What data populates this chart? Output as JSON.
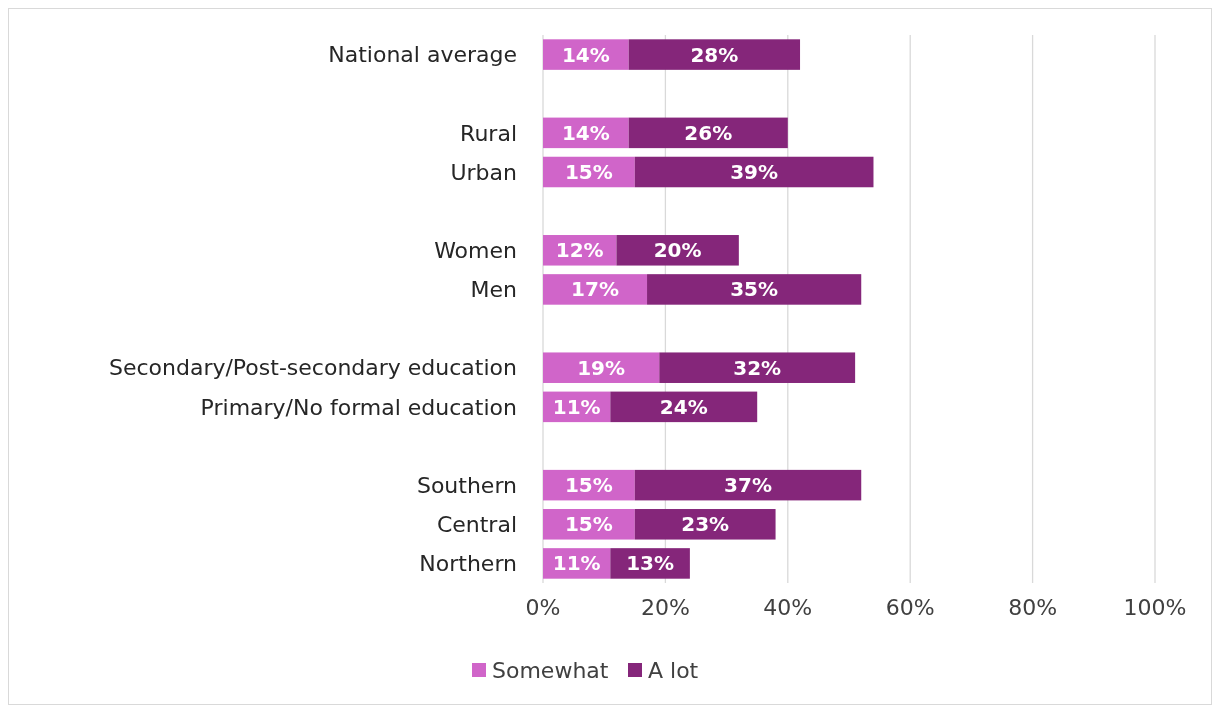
{
  "chart_data": {
    "type": "bar",
    "orientation": "horizontal",
    "stacked": true,
    "categories": [
      "National average",
      null,
      "Rural",
      "Urban",
      null,
      "Women",
      "Men",
      null,
      "Secondary/Post-secondary education",
      "Primary/No formal education",
      null,
      "Southern",
      "Central",
      "Northern"
    ],
    "series": [
      {
        "name": "Somewhat",
        "color": "#d065c9",
        "values": [
          14,
          null,
          14,
          15,
          null,
          12,
          17,
          null,
          19,
          11,
          null,
          15,
          15,
          11
        ],
        "value_labels": [
          "14%",
          null,
          "14%",
          "15%",
          null,
          "12%",
          "17%",
          null,
          "19%",
          "11%",
          null,
          "15%",
          "15%",
          "11%"
        ]
      },
      {
        "name": "A lot",
        "color": "#85267a",
        "values": [
          28,
          null,
          26,
          39,
          null,
          20,
          35,
          null,
          32,
          24,
          null,
          37,
          23,
          13
        ],
        "value_labels": [
          "28%",
          null,
          "26%",
          "39%",
          null,
          "20%",
          "35%",
          null,
          "32%",
          "24%",
          null,
          "37%",
          "23%",
          "13%"
        ]
      }
    ],
    "xlim": [
      0,
      100
    ],
    "xticks": [
      {
        "value": 0,
        "label": "0%"
      },
      {
        "value": 20,
        "label": "20%"
      },
      {
        "value": 40,
        "label": "40%"
      },
      {
        "value": 60,
        "label": "60%"
      },
      {
        "value": 80,
        "label": "80%"
      },
      {
        "value": 100,
        "label": "100%"
      }
    ],
    "grid": "x",
    "legend": "bottom"
  }
}
